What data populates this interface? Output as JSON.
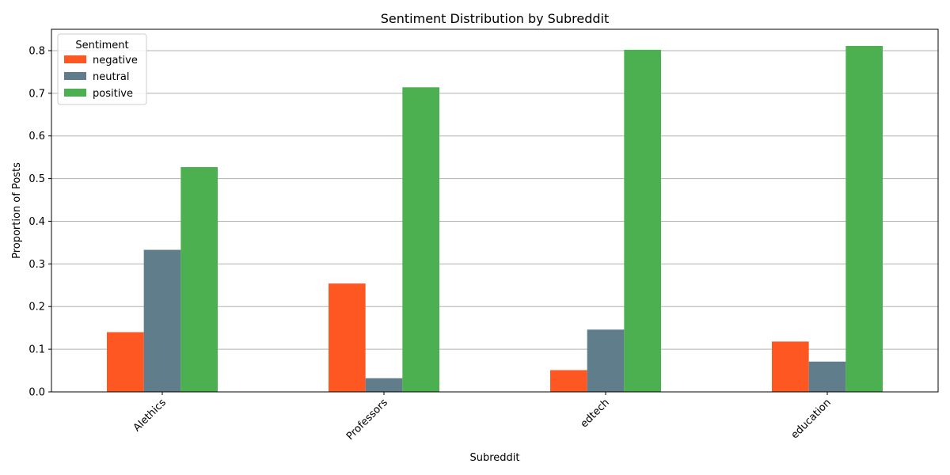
{
  "chart_data": {
    "type": "bar",
    "title": "Sentiment Distribution by Subreddit",
    "xlabel": "Subreddit",
    "ylabel": "Proportion of Posts",
    "categories": [
      "AIethics",
      "Professors",
      "edtech",
      "education"
    ],
    "series": [
      {
        "name": "negative",
        "color": "#FF5722",
        "values": [
          0.14,
          0.254,
          0.051,
          0.118
        ]
      },
      {
        "name": "neutral",
        "color": "#607D8B",
        "values": [
          0.333,
          0.032,
          0.146,
          0.071
        ]
      },
      {
        "name": "positive",
        "color": "#4CAF50",
        "values": [
          0.527,
          0.714,
          0.802,
          0.811
        ]
      }
    ],
    "ylim": [
      0,
      0.85
    ],
    "yticks": [
      0.0,
      0.1,
      0.2,
      0.3,
      0.4,
      0.5,
      0.6,
      0.7,
      0.8
    ],
    "ytick_labels": [
      "0.0",
      "0.1",
      "0.2",
      "0.3",
      "0.4",
      "0.5",
      "0.6",
      "0.7",
      "0.8"
    ],
    "grid": "y",
    "legend": {
      "title": "Sentiment",
      "placement": "top-left"
    }
  }
}
